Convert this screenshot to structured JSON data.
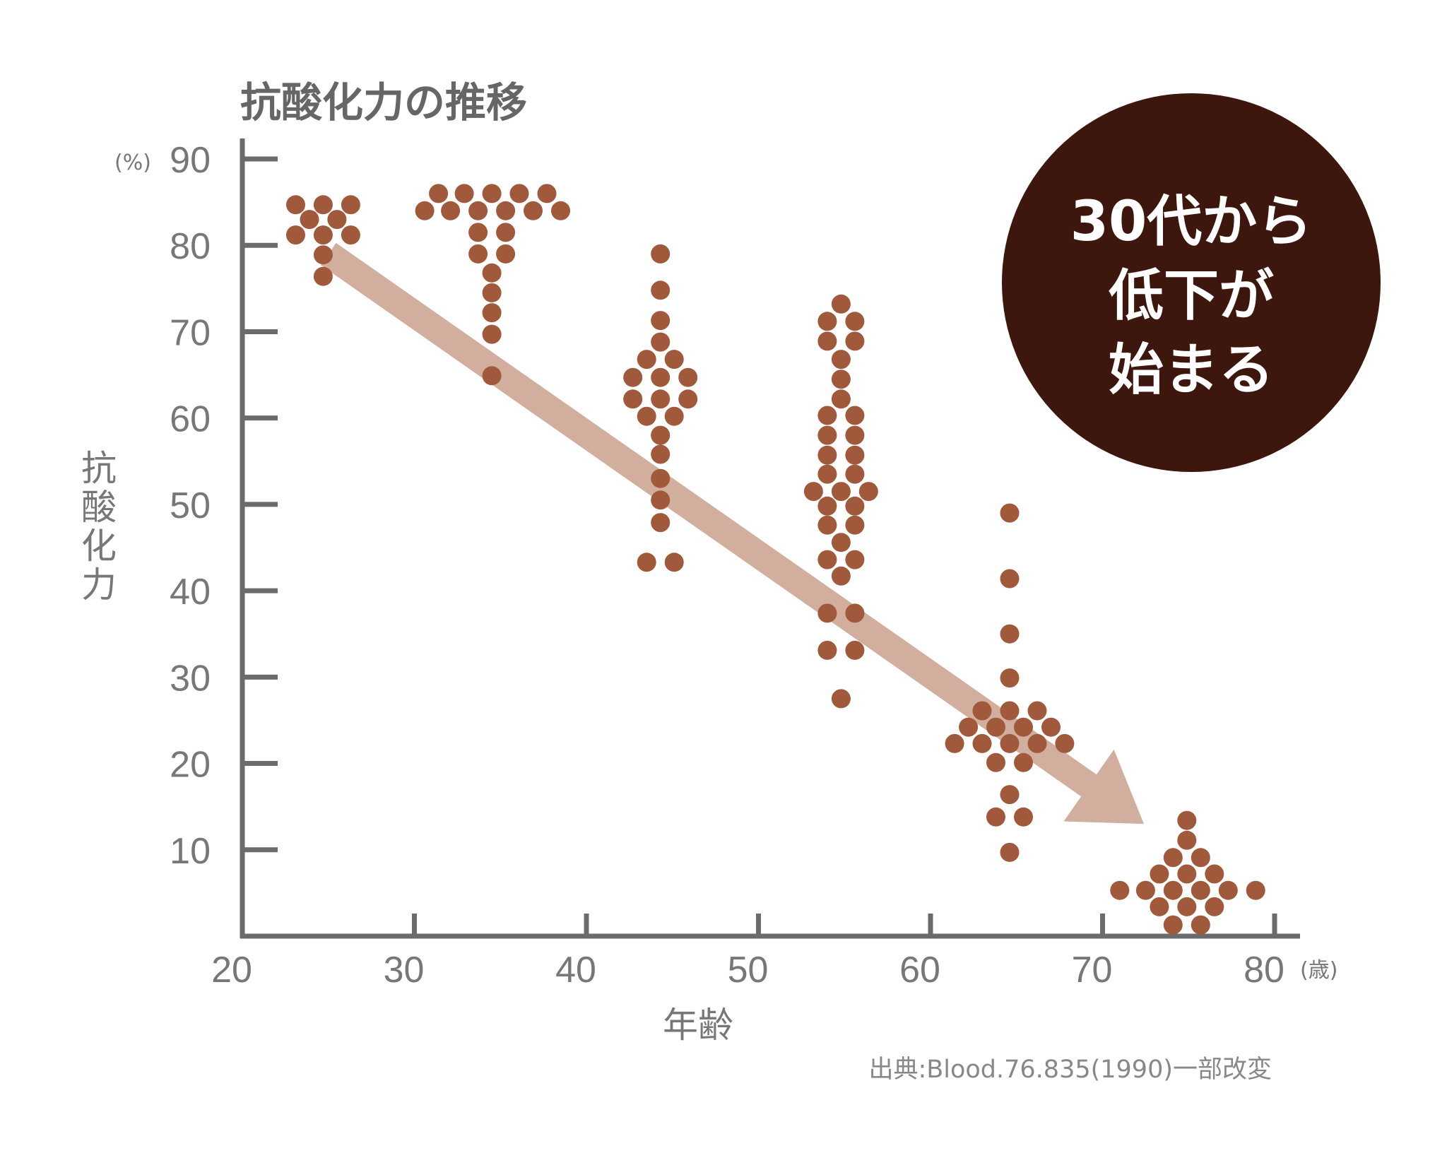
{
  "chart_data": {
    "type": "scatter",
    "title": "抗酸化力の推移",
    "xlabel": "年齢",
    "ylabel": "抗酸化力",
    "x_unit": "(歳)",
    "y_unit": "(%)",
    "xlim": [
      20,
      80
    ],
    "ylim": [
      0,
      90
    ],
    "x_ticks": [
      20,
      30,
      40,
      50,
      60,
      70,
      80
    ],
    "y_ticks": [
      10,
      20,
      30,
      40,
      50,
      60,
      70,
      80,
      90
    ],
    "source": "出典:Blood.76.835(1990)一部改変",
    "callout": [
      "30代から",
      "低下が",
      "始まる"
    ],
    "trend": {
      "from": [
        25,
        79
      ],
      "to": [
        72.4,
        13
      ]
    },
    "colors": {
      "point": "#a0593a",
      "arrow": "#d1ae9e",
      "axis": "#6b6b6b",
      "callout_bg": "#3d160d"
    },
    "points": [
      [
        23.1,
        84.7
      ],
      [
        24.7,
        84.7
      ],
      [
        26.3,
        84.7
      ],
      [
        23.9,
        83.0
      ],
      [
        25.5,
        83.0
      ],
      [
        23.1,
        81.2
      ],
      [
        24.7,
        81.2
      ],
      [
        26.3,
        81.2
      ],
      [
        24.7,
        78.9
      ],
      [
        24.7,
        76.4
      ],
      [
        31.4,
        86.0
      ],
      [
        32.9,
        86.0
      ],
      [
        34.5,
        86.0
      ],
      [
        36.1,
        86.0
      ],
      [
        37.7,
        86.0
      ],
      [
        30.6,
        84.0
      ],
      [
        32.1,
        84.0
      ],
      [
        33.7,
        84.0
      ],
      [
        35.3,
        84.0
      ],
      [
        36.9,
        84.0
      ],
      [
        38.5,
        84.0
      ],
      [
        33.7,
        81.5
      ],
      [
        35.3,
        81.5
      ],
      [
        33.7,
        79.0
      ],
      [
        35.3,
        79.0
      ],
      [
        34.5,
        76.8
      ],
      [
        34.5,
        74.5
      ],
      [
        34.5,
        72.2
      ],
      [
        34.5,
        69.7
      ],
      [
        34.5,
        64.9
      ],
      [
        44.3,
        79.0
      ],
      [
        44.3,
        74.8
      ],
      [
        44.3,
        71.3
      ],
      [
        44.3,
        68.8
      ],
      [
        43.5,
        66.8
      ],
      [
        45.1,
        66.8
      ],
      [
        42.7,
        64.7
      ],
      [
        44.3,
        64.7
      ],
      [
        45.9,
        64.7
      ],
      [
        42.7,
        62.2
      ],
      [
        44.3,
        62.2
      ],
      [
        45.9,
        62.2
      ],
      [
        43.5,
        60.2
      ],
      [
        45.1,
        60.2
      ],
      [
        44.3,
        58.0
      ],
      [
        44.3,
        55.8
      ],
      [
        44.3,
        53.0
      ],
      [
        44.3,
        50.5
      ],
      [
        44.3,
        47.9
      ],
      [
        43.5,
        43.3
      ],
      [
        45.1,
        43.3
      ],
      [
        54.8,
        73.2
      ],
      [
        54.0,
        71.2
      ],
      [
        55.6,
        71.2
      ],
      [
        54.0,
        68.9
      ],
      [
        55.6,
        68.9
      ],
      [
        54.8,
        66.8
      ],
      [
        54.8,
        64.5
      ],
      [
        54.8,
        62.2
      ],
      [
        54.0,
        60.3
      ],
      [
        55.6,
        60.3
      ],
      [
        54.0,
        58.0
      ],
      [
        55.6,
        58.0
      ],
      [
        54.0,
        55.7
      ],
      [
        55.6,
        55.7
      ],
      [
        54.0,
        53.5
      ],
      [
        55.6,
        53.5
      ],
      [
        53.2,
        51.5
      ],
      [
        54.8,
        51.5
      ],
      [
        56.4,
        51.5
      ],
      [
        54.0,
        49.8
      ],
      [
        55.6,
        49.8
      ],
      [
        54.0,
        47.6
      ],
      [
        55.6,
        47.6
      ],
      [
        54.8,
        45.6
      ],
      [
        54.0,
        43.6
      ],
      [
        55.6,
        43.6
      ],
      [
        54.8,
        41.7
      ],
      [
        54.0,
        37.4
      ],
      [
        55.6,
        37.4
      ],
      [
        54.0,
        33.1
      ],
      [
        55.6,
        33.1
      ],
      [
        54.8,
        27.5
      ],
      [
        64.6,
        49.0
      ],
      [
        64.6,
        41.4
      ],
      [
        64.6,
        35.0
      ],
      [
        64.6,
        29.9
      ],
      [
        63.0,
        26.1
      ],
      [
        64.6,
        26.1
      ],
      [
        66.2,
        26.1
      ],
      [
        62.2,
        24.2
      ],
      [
        63.8,
        24.2
      ],
      [
        65.4,
        24.2
      ],
      [
        67.0,
        24.2
      ],
      [
        61.4,
        22.3
      ],
      [
        63.0,
        22.3
      ],
      [
        64.6,
        22.3
      ],
      [
        66.2,
        22.3
      ],
      [
        67.8,
        22.3
      ],
      [
        63.8,
        20.1
      ],
      [
        65.4,
        20.1
      ],
      [
        64.6,
        16.4
      ],
      [
        63.8,
        13.8
      ],
      [
        65.4,
        13.8
      ],
      [
        64.6,
        9.7
      ],
      [
        74.9,
        13.4
      ],
      [
        74.9,
        11.1
      ],
      [
        74.1,
        9.1
      ],
      [
        75.7,
        9.1
      ],
      [
        73.3,
        7.2
      ],
      [
        74.9,
        7.2
      ],
      [
        76.5,
        7.2
      ],
      [
        71.0,
        5.3
      ],
      [
        72.5,
        5.3
      ],
      [
        74.1,
        5.3
      ],
      [
        75.7,
        5.3
      ],
      [
        77.3,
        5.3
      ],
      [
        78.9,
        5.3
      ],
      [
        73.3,
        3.4
      ],
      [
        74.9,
        3.4
      ],
      [
        76.5,
        3.4
      ],
      [
        74.1,
        1.3
      ],
      [
        75.7,
        1.3
      ]
    ]
  }
}
